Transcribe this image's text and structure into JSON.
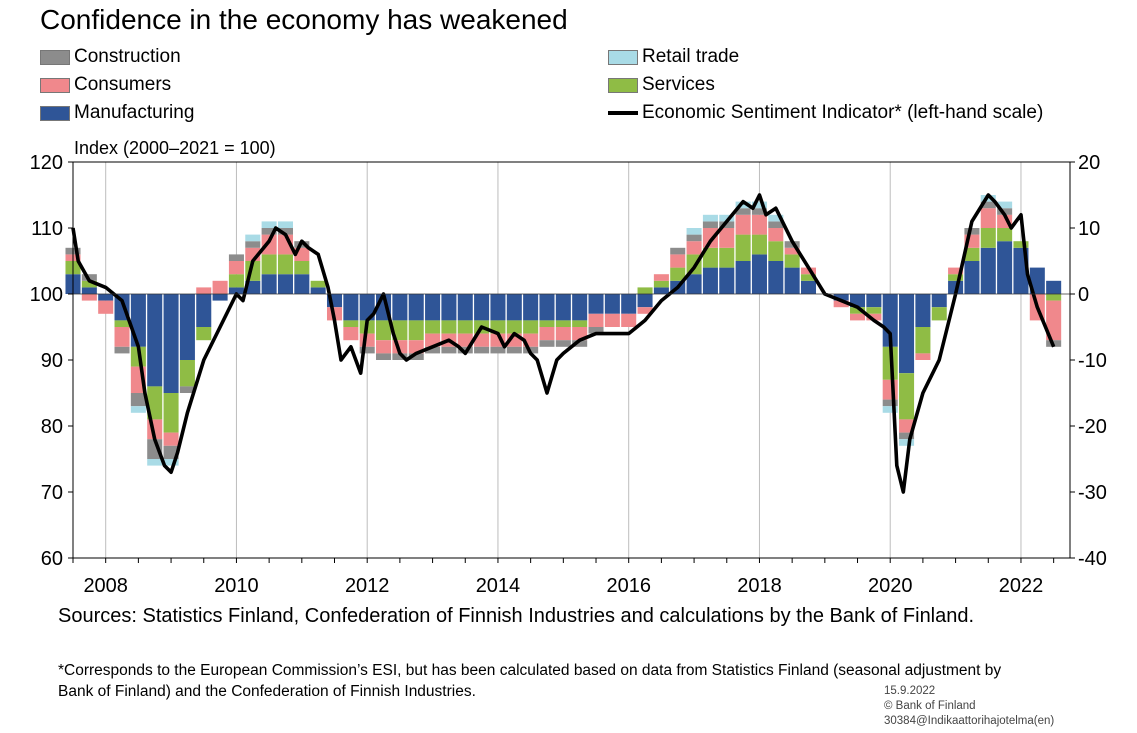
{
  "title": "Confidence in the economy has weakened",
  "legend": {
    "construction": "Construction",
    "consumers": "Consumers",
    "manufacturing": "Manufacturing",
    "retail": "Retail trade",
    "services": "Services",
    "esi": "Economic Sentiment Indicator* (left-hand scale)"
  },
  "colors": {
    "construction": "#8c8c8c",
    "consumers": "#f0888c",
    "manufacturing": "#2f5597",
    "retail": "#a9dbe6",
    "services": "#8fbc45",
    "esi": "#000000"
  },
  "unit_label": "Index (2000–2021 = 100)",
  "sources": "Sources: Statistics Finland, Confederation of Finnish Industries and calculations by the Bank of Finland.",
  "footnote": "*Corresponds to the European Commission’s ESI, but has been calculated based on data from Statistics Finland (seasonal adjustment by Bank of Finland) and the Confederation of Finnish Industries.",
  "stamp": {
    "date": "15.9.2022",
    "copyright": "© Bank of Finland",
    "code": "30384@Indikaattorihajotelma(en)"
  },
  "chart_data": {
    "type": "bar",
    "subtype": "stacked bar with line overlay",
    "x_ticks": [
      "2008",
      "2010",
      "2012",
      "2014",
      "2016",
      "2018",
      "2020",
      "2022"
    ],
    "x_range": [
      2007.5,
      2022.75
    ],
    "left_axis": {
      "ylim": [
        60,
        120
      ],
      "ticks": [
        "60",
        "70",
        "80",
        "90",
        "100",
        "110",
        "120"
      ]
    },
    "right_axis": {
      "ylim": [
        -40,
        20
      ],
      "ticks": [
        "-40",
        "-30",
        "-20",
        "-10",
        "0",
        "10",
        "20"
      ]
    },
    "grid": "vertical",
    "legend_position": "top",
    "components": {
      "x": [
        2007.5,
        2007.75,
        2008.0,
        2008.25,
        2008.5,
        2008.75,
        2009.0,
        2009.25,
        2009.5,
        2009.75,
        2010.0,
        2010.25,
        2010.5,
        2010.75,
        2011.0,
        2011.25,
        2011.5,
        2011.75,
        2012.0,
        2012.25,
        2012.5,
        2012.75,
        2013.0,
        2013.25,
        2013.5,
        2013.75,
        2014.0,
        2014.25,
        2014.5,
        2014.75,
        2015.0,
        2015.25,
        2015.5,
        2015.75,
        2016.0,
        2016.25,
        2016.5,
        2016.75,
        2017.0,
        2017.25,
        2017.5,
        2017.75,
        2018.0,
        2018.25,
        2018.5,
        2018.75,
        2019.0,
        2019.25,
        2019.5,
        2019.75,
        2020.0,
        2020.25,
        2020.5,
        2020.75,
        2021.0,
        2021.25,
        2021.5,
        2021.75,
        2022.0,
        2022.25,
        2022.5
      ],
      "series": [
        {
          "key": "manufacturing",
          "name": "Manufacturing",
          "values": [
            3,
            1,
            -1,
            -4,
            -8,
            -14,
            -15,
            -10,
            -5,
            -1,
            1,
            2,
            3,
            3,
            3,
            1,
            -2,
            -4,
            -4,
            -4,
            -4,
            -4,
            -4,
            -4,
            -4,
            -4,
            -4,
            -4,
            -4,
            -4,
            -4,
            -4,
            -3,
            -3,
            -3,
            -2,
            1,
            2,
            3,
            4,
            4,
            5,
            6,
            5,
            4,
            2,
            0,
            -1,
            -2,
            -2,
            -8,
            -12,
            -5,
            -2,
            2,
            5,
            7,
            8,
            7,
            4,
            2
          ]
        },
        {
          "key": "services",
          "name": "Services",
          "values": [
            2,
            1,
            0,
            -1,
            -3,
            -5,
            -6,
            -4,
            -2,
            0,
            2,
            3,
            3,
            3,
            2,
            1,
            0,
            -1,
            -2,
            -3,
            -3,
            -3,
            -2,
            -2,
            -2,
            -2,
            -2,
            -2,
            -2,
            -1,
            -1,
            -1,
            0,
            0,
            0,
            1,
            1,
            2,
            3,
            3,
            3,
            4,
            3,
            3,
            2,
            1,
            0,
            0,
            -1,
            -1,
            -5,
            -7,
            -4,
            -2,
            1,
            2,
            3,
            2,
            1,
            0,
            -1
          ]
        },
        {
          "key": "consumers",
          "name": "Consumers",
          "values": [
            1,
            -1,
            -2,
            -3,
            -4,
            -3,
            -2,
            0,
            1,
            2,
            2,
            2,
            3,
            3,
            2,
            0,
            -2,
            -2,
            -2,
            -2,
            -2,
            -2,
            -2,
            -2,
            -2,
            -2,
            -2,
            -2,
            -2,
            -2,
            -2,
            -2,
            -2,
            -2,
            -2,
            -1,
            1,
            2,
            2,
            3,
            3,
            3,
            3,
            2,
            1,
            1,
            0,
            -1,
            -1,
            -1,
            -3,
            -2,
            -1,
            0,
            1,
            2,
            3,
            2,
            0,
            -4,
            -6
          ]
        },
        {
          "key": "construction",
          "name": "Construction",
          "values": [
            1,
            1,
            0,
            -1,
            -2,
            -3,
            -2,
            -1,
            0,
            0,
            1,
            1,
            1,
            1,
            1,
            0,
            0,
            0,
            -1,
            -1,
            -1,
            -1,
            -1,
            -1,
            -1,
            -1,
            -1,
            -1,
            -1,
            -1,
            -1,
            -1,
            -1,
            0,
            0,
            0,
            0,
            1,
            1,
            1,
            1,
            1,
            1,
            1,
            1,
            0,
            0,
            0,
            0,
            0,
            -1,
            -1,
            0,
            0,
            0,
            1,
            1,
            1,
            0,
            0,
            -1
          ]
        },
        {
          "key": "retail",
          "name": "Retail trade",
          "values": [
            0,
            0,
            0,
            0,
            -1,
            -1,
            -1,
            0,
            0,
            0,
            0,
            1,
            1,
            1,
            0,
            0,
            0,
            0,
            0,
            0,
            0,
            0,
            0,
            0,
            0,
            0,
            0,
            0,
            0,
            0,
            0,
            0,
            0,
            0,
            0,
            0,
            0,
            0,
            1,
            1,
            1,
            1,
            1,
            1,
            0,
            0,
            0,
            0,
            0,
            0,
            -1,
            -1,
            0,
            0,
            0,
            0,
            1,
            1,
            0,
            0,
            0
          ]
        }
      ]
    },
    "esi_line": {
      "name": "Economic Sentiment Indicator* (left-hand scale)",
      "x": [
        2007.5,
        2007.58,
        2007.75,
        2008.0,
        2008.25,
        2008.5,
        2008.6,
        2008.75,
        2008.9,
        2009.0,
        2009.1,
        2009.25,
        2009.5,
        2009.75,
        2010.0,
        2010.1,
        2010.25,
        2010.5,
        2010.6,
        2010.75,
        2010.9,
        2011.0,
        2011.1,
        2011.25,
        2011.4,
        2011.5,
        2011.6,
        2011.75,
        2011.9,
        2012.0,
        2012.1,
        2012.25,
        2012.4,
        2012.5,
        2012.6,
        2012.75,
        2013.0,
        2013.25,
        2013.4,
        2013.5,
        2013.75,
        2014.0,
        2014.1,
        2014.25,
        2014.4,
        2014.5,
        2014.6,
        2014.75,
        2014.9,
        2015.0,
        2015.25,
        2015.5,
        2015.75,
        2016.0,
        2016.25,
        2016.5,
        2016.75,
        2017.0,
        2017.25,
        2017.5,
        2017.75,
        2017.9,
        2018.0,
        2018.1,
        2018.25,
        2018.5,
        2018.75,
        2019.0,
        2019.25,
        2019.5,
        2019.75,
        2019.9,
        2020.0,
        2020.1,
        2020.2,
        2020.3,
        2020.5,
        2020.75,
        2021.0,
        2021.25,
        2021.5,
        2021.6,
        2021.75,
        2021.85,
        2022.0,
        2022.1,
        2022.25,
        2022.5
      ],
      "y": [
        110,
        105,
        102,
        101,
        99,
        92,
        85,
        78,
        74,
        73,
        76,
        82,
        90,
        95,
        100,
        99,
        105,
        108,
        110,
        109,
        106,
        108,
        107,
        106,
        101,
        96,
        90,
        92,
        88,
        96,
        97,
        100,
        94,
        91,
        90,
        91,
        92,
        93,
        92,
        91,
        95,
        94,
        92,
        94,
        93,
        91,
        90,
        85,
        90,
        91,
        93,
        94,
        94,
        94,
        96,
        99,
        101,
        104,
        108,
        111,
        114,
        113,
        115,
        112,
        113,
        108,
        104,
        100,
        99,
        98,
        96,
        95,
        94,
        74,
        70,
        78,
        85,
        90,
        100,
        111,
        115,
        114,
        112,
        110,
        112,
        103,
        98,
        92
      ]
    }
  }
}
